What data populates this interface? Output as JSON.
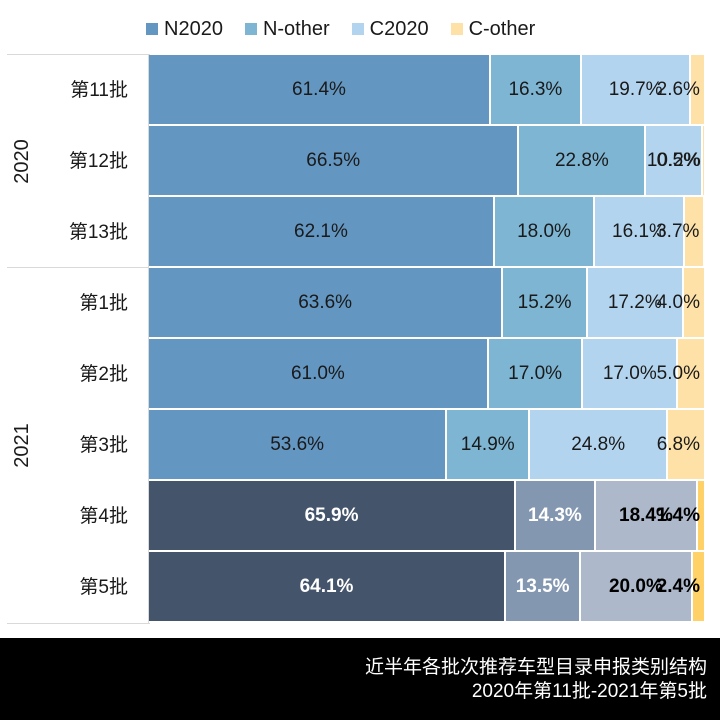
{
  "legend": [
    {
      "name": "N2020",
      "color": "#6396c1"
    },
    {
      "name": "N-other",
      "color": "#7db5d3"
    },
    {
      "name": "C2020",
      "color": "#b3d4ee"
    },
    {
      "name": "C-other",
      "color": "#fde1a7"
    }
  ],
  "year_groups": [
    {
      "label": "2020",
      "rows": 3
    },
    {
      "label": "2021",
      "rows": 5
    }
  ],
  "rows": [
    {
      "label": "第11批",
      "year": "2020",
      "values": [
        "61.4%",
        "16.3%",
        "19.7%",
        "2.6%"
      ]
    },
    {
      "label": "第12批",
      "year": "2020",
      "values": [
        "66.5%",
        "22.8%",
        "10.2%",
        "0.5%"
      ]
    },
    {
      "label": "第13批",
      "year": "2020",
      "values": [
        "62.1%",
        "18.0%",
        "16.1%",
        "3.7%"
      ]
    },
    {
      "label": "第1批",
      "year": "2021",
      "values": [
        "63.6%",
        "15.2%",
        "17.2%",
        "4.0%"
      ]
    },
    {
      "label": "第2批",
      "year": "2021",
      "values": [
        "61.0%",
        "17.0%",
        "17.0%",
        "5.0%"
      ]
    },
    {
      "label": "第3批",
      "year": "2021",
      "values": [
        "53.6%",
        "14.9%",
        "24.8%",
        "6.8%"
      ]
    },
    {
      "label": "第4批",
      "year": "2021",
      "values": [
        "65.9%",
        "14.3%",
        "18.4%",
        "1.4%"
      ],
      "highlight": true
    },
    {
      "label": "第5批",
      "year": "2021",
      "values": [
        "64.1%",
        "13.5%",
        "20.0%",
        "2.4%"
      ],
      "highlight": true
    }
  ],
  "colors": {
    "normal": [
      "#6396c1",
      "#7db5d3",
      "#b3d4ee",
      "#fde1a7"
    ],
    "highlight": [
      "#44546a",
      "#8497b0",
      "#adb9ca",
      "#ffd166"
    ],
    "highlight_text": [
      "#ffffff",
      "#ffffff",
      "#000000",
      "#000000"
    ]
  },
  "footer": {
    "line1": "近半年各批次推荐车型目录申报类别结构",
    "line2": "2020年第11批-2021年第5批"
  },
  "chart_data": {
    "type": "bar",
    "orientation": "horizontal",
    "stacked": true,
    "percent": true,
    "title": "近半年各批次推荐车型目录申报类别结构",
    "subtitle": "2020年第11批-2021年第5批",
    "categories": [
      "2020 第11批",
      "2020 第12批",
      "2020 第13批",
      "2021 第1批",
      "2021 第2批",
      "2021 第3批",
      "2021 第4批",
      "2021 第5批"
    ],
    "series": [
      {
        "name": "N2020",
        "values": [
          61.4,
          66.5,
          62.1,
          63.6,
          61.0,
          53.6,
          65.9,
          64.1
        ]
      },
      {
        "name": "N-other",
        "values": [
          16.3,
          22.8,
          18.0,
          15.2,
          17.0,
          14.9,
          14.3,
          13.5
        ]
      },
      {
        "name": "C2020",
        "values": [
          19.7,
          10.2,
          16.1,
          17.2,
          17.0,
          24.8,
          18.4,
          20.0
        ]
      },
      {
        "name": "C-other",
        "values": [
          2.6,
          0.5,
          3.7,
          4.0,
          5.0,
          6.8,
          1.4,
          2.4
        ]
      }
    ],
    "xlabel": "",
    "ylabel": "",
    "xlim": [
      0,
      100
    ],
    "legend_position": "top",
    "grid": false,
    "group_labels": [
      "2020",
      "2021"
    ]
  }
}
